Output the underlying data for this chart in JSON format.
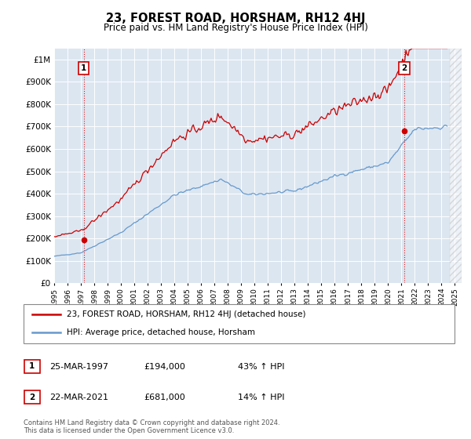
{
  "title": "23, FOREST ROAD, HORSHAM, RH12 4HJ",
  "subtitle": "Price paid vs. HM Land Registry's House Price Index (HPI)",
  "xlim_start": 1995.0,
  "xlim_end": 2025.5,
  "ylim_bottom": 0,
  "ylim_top": 1050000,
  "yticks": [
    0,
    100000,
    200000,
    300000,
    400000,
    500000,
    600000,
    700000,
    800000,
    900000,
    1000000
  ],
  "ytick_labels": [
    "£0",
    "£100K",
    "£200K",
    "£300K",
    "£400K",
    "£500K",
    "£600K",
    "£700K",
    "£800K",
    "£900K",
    "£1M"
  ],
  "xticks": [
    1995,
    1996,
    1997,
    1998,
    1999,
    2000,
    2001,
    2002,
    2003,
    2004,
    2005,
    2006,
    2007,
    2008,
    2009,
    2010,
    2011,
    2012,
    2013,
    2014,
    2015,
    2016,
    2017,
    2018,
    2019,
    2020,
    2021,
    2022,
    2023,
    2024,
    2025
  ],
  "plot_bg_color": "#dce6f1",
  "grid_color": "#ffffff",
  "hpi_color": "#6699cc",
  "price_color": "#cc0000",
  "marker_color": "#cc0000",
  "sale1_x": 1997.21,
  "sale1_y": 194000,
  "sale2_x": 2021.21,
  "sale2_y": 681000,
  "legend_line1": "23, FOREST ROAD, HORSHAM, RH12 4HJ (detached house)",
  "legend_line2": "HPI: Average price, detached house, Horsham",
  "sale1_date": "25-MAR-1997",
  "sale1_price": "£194,000",
  "sale1_hpi": "43% ↑ HPI",
  "sale2_date": "22-MAR-2021",
  "sale2_price": "£681,000",
  "sale2_hpi": "14% ↑ HPI",
  "footer": "Contains HM Land Registry data © Crown copyright and database right 2024.\nThis data is licensed under the Open Government Licence v3.0."
}
